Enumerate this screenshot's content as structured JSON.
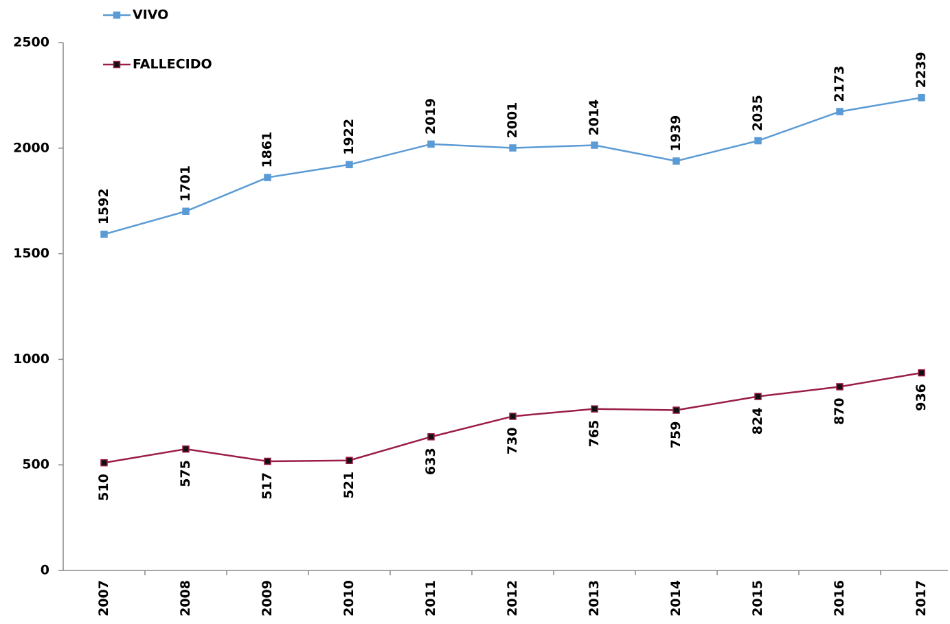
{
  "chart_data": {
    "type": "line",
    "categories": [
      "2007",
      "2008",
      "2009",
      "2010",
      "2011",
      "2012",
      "2013",
      "2014",
      "2015",
      "2016",
      "2017"
    ],
    "series": [
      {
        "name": "VIVO",
        "color": "#5b9bd5",
        "marker_color": "#5b9bd5",
        "label_position": "above",
        "values": [
          1592,
          1701,
          1861,
          1922,
          2019,
          2001,
          2014,
          1939,
          2035,
          2173,
          2239
        ]
      },
      {
        "name": "FALLECIDO",
        "color": "#9b1c4a",
        "marker_color": "#111111",
        "label_position": "below",
        "values": [
          510,
          575,
          517,
          521,
          633,
          730,
          765,
          759,
          824,
          870,
          936
        ]
      }
    ],
    "ylim": [
      0,
      2500
    ],
    "yticks": [
      0,
      500,
      1000,
      1500,
      2000,
      2500
    ],
    "grid": false
  }
}
